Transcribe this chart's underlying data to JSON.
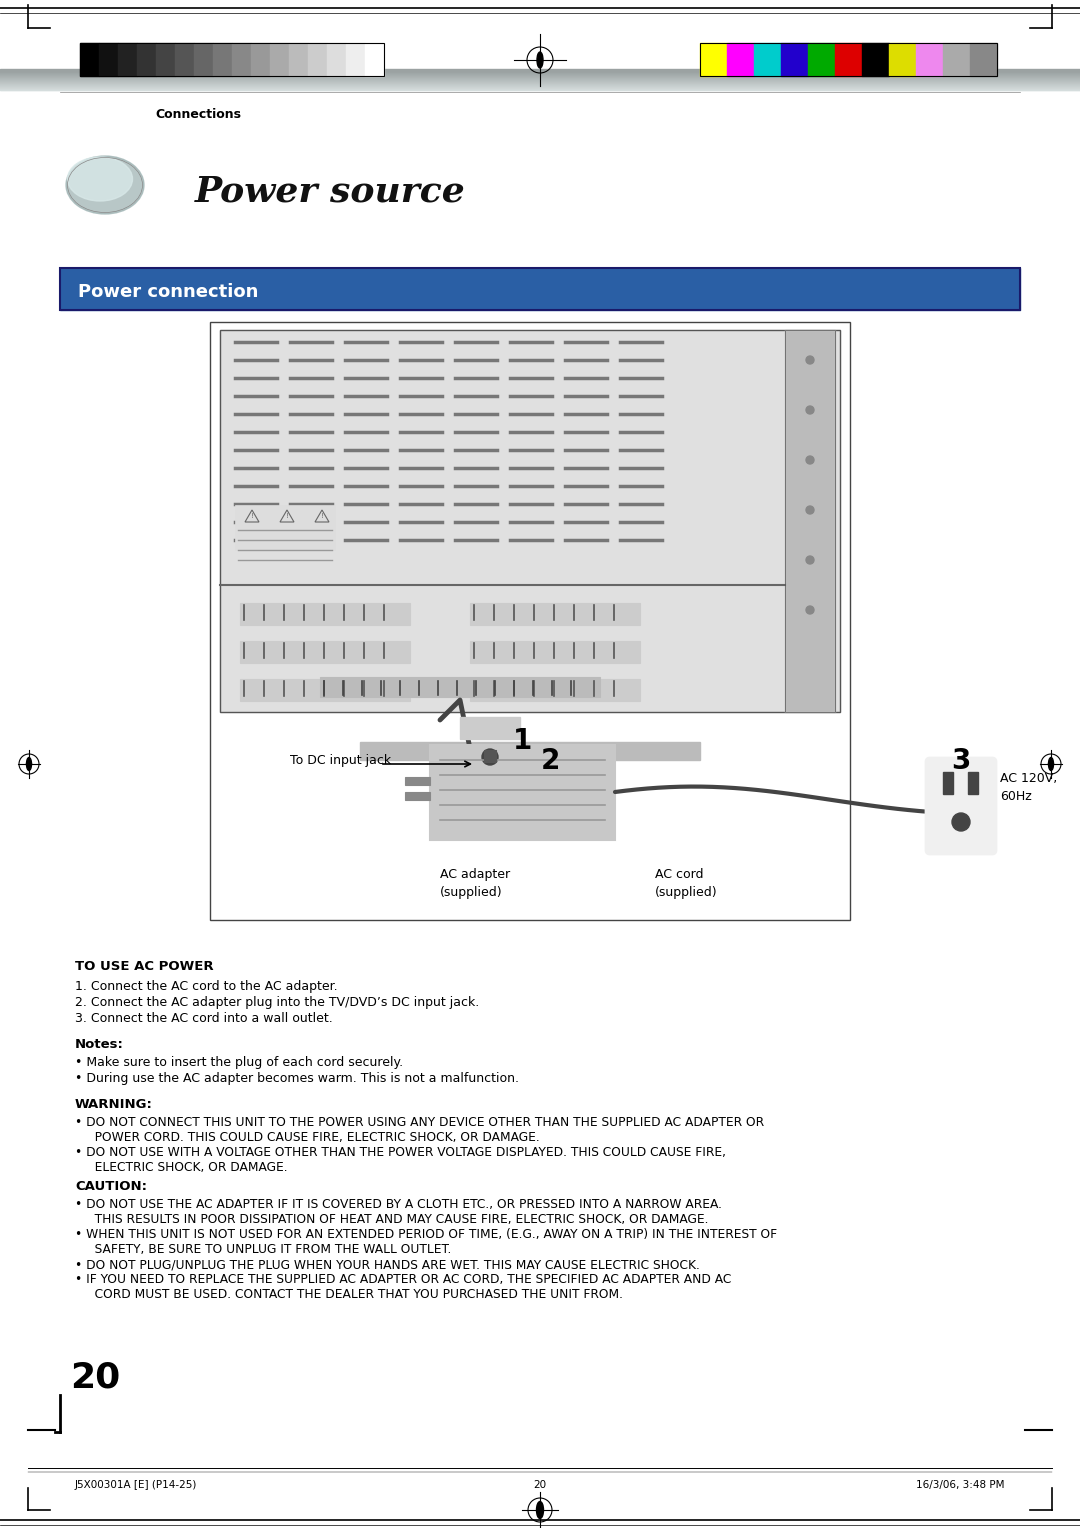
{
  "page_width": 10.8,
  "page_height": 15.28,
  "bg_color": "#ffffff",
  "header_bar_color": "#7a9a9a",
  "connections_label": "Connections",
  "section_title": "Power source",
  "section_box_title": "Power connection",
  "section_box_bg": "#2a5fa5",
  "section_box_text_color": "#ffffff",
  "page_number": "20",
  "footer_left": "J5X00301A [E] (P14-25)",
  "footer_center": "20",
  "footer_right": "16/3/06, 3:48 PM",
  "grayscale_colors": [
    "#000000",
    "#111111",
    "#222222",
    "#333333",
    "#444444",
    "#555555",
    "#666666",
    "#777777",
    "#888888",
    "#999999",
    "#aaaaaa",
    "#bbbbbb",
    "#cccccc",
    "#dddddd",
    "#eeeeee",
    "#ffffff"
  ],
  "color_swatches": [
    "#ffff00",
    "#ff00ff",
    "#00cccc",
    "#2200cc",
    "#00aa00",
    "#dd0000",
    "#000000",
    "#dddd00",
    "#ee88ee",
    "#aaaaaa",
    "#888888"
  ],
  "to_use_ac_power_title": "TO USE AC POWER",
  "to_use_steps": [
    "1. Connect the AC cord to the AC adapter.",
    "2. Connect the AC adapter plug into the TV/DVD’s DC input jack.",
    "3. Connect the AC cord into a wall outlet."
  ],
  "notes_title": "Notes:",
  "notes": [
    "• Make sure to insert the plug of each cord securely.",
    "• During use the AC adapter becomes warm. This is not a malfunction."
  ],
  "warning_title": "WARNING:",
  "warnings": [
    "• DO NOT CONNECT THIS UNIT TO THE POWER USING ANY DEVICE OTHER THAN THE SUPPLIED AC ADAPTER OR\n   POWER CORD. THIS COULD CAUSE FIRE, ELECTRIC SHOCK, OR DAMAGE.",
    "• DO NOT USE WITH A VOLTAGE OTHER THAN THE POWER VOLTAGE DISPLAYED. THIS COULD CAUSE FIRE,\n   ELECTRIC SHOCK, OR DAMAGE."
  ],
  "caution_title": "CAUTION:",
  "cautions": [
    "• DO NOT USE THE AC ADAPTER IF IT IS COVERED BY A CLOTH ETC., OR PRESSED INTO A NARROW AREA.\n   THIS RESULTS IN POOR DISSIPATION OF HEAT AND MAY CAUSE FIRE, ELECTRIC SHOCK, OR DAMAGE.",
    "• WHEN THIS UNIT IS NOT USED FOR AN EXTENDED PERIOD OF TIME, (E.G., AWAY ON A TRIP) IN THE INTEREST OF\n   SAFETY, BE SURE TO UNPLUG IT FROM THE WALL OUTLET.",
    "• DO NOT PLUG/UNPLUG THE PLUG WHEN YOUR HANDS ARE WET. THIS MAY CAUSE ELECTRIC SHOCK.",
    "• IF YOU NEED TO REPLACE THE SUPPLIED AC ADAPTER OR AC CORD, THE SPECIFIED AC ADAPTER AND AC\n   CORD MUST BE USED. CONTACT THE DEALER THAT YOU PURCHASED THE UNIT FROM."
  ],
  "label_dc_input": "To DC input jack",
  "label_num2": "2",
  "label_ac_voltage": "AC 120V,\n60Hz",
  "label_num3": "3",
  "label_ac_adapter": "AC adapter\n(supplied)",
  "label_num1": "1",
  "label_ac_cord": "AC cord\n(supplied)"
}
